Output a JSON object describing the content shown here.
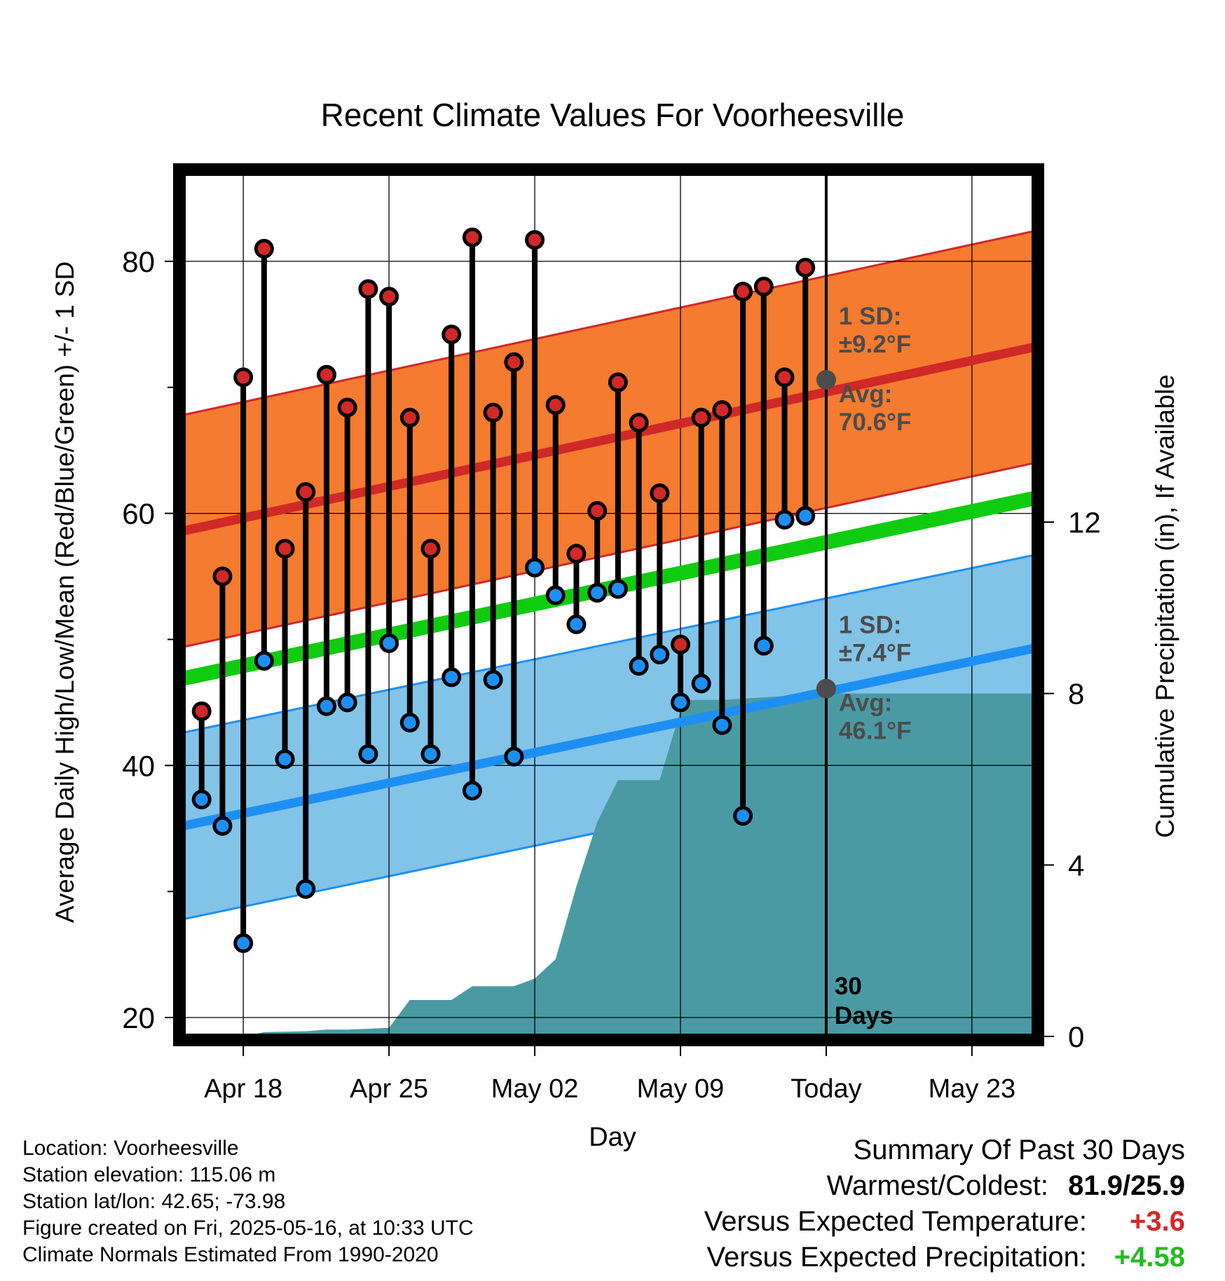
{
  "chart_data": {
    "type": "line",
    "title": "Recent Climate Values For Voorheesville",
    "xlabel": "Day",
    "ylabel": "Average Daily High/Low/Mean (Red/Blue/Green) +/- 1 SD",
    "y2label": "Cumulative Precipitation (in), If Available",
    "xlim": [
      -0.9,
      40
    ],
    "ylim": [
      18.5,
      87
    ],
    "y2lim": [
      0,
      20.14
    ],
    "x_tick_positions": [
      2,
      9,
      16,
      23,
      30,
      37
    ],
    "x_tick_labels": [
      "Apr 18",
      "Apr 25",
      "May 02",
      "May 09",
      "Today",
      "May 23"
    ],
    "y_ticks": [
      20,
      40,
      60,
      80
    ],
    "y_minor_ticks": [
      30,
      50,
      70
    ],
    "y2_ticks": [
      0,
      4,
      8,
      12
    ],
    "grid": true,
    "today_x": 30,
    "today_label": "30\nDays",
    "daily": {
      "x": [
        0,
        1,
        2,
        3,
        4,
        5,
        6,
        7,
        8,
        9,
        10,
        11,
        12,
        13,
        14,
        15,
        16,
        17,
        18,
        19,
        20,
        21,
        22,
        23,
        24,
        25,
        26,
        27,
        28,
        29
      ],
      "high": [
        44.3,
        55.0,
        70.8,
        81.0,
        57.2,
        61.7,
        71.0,
        68.4,
        77.8,
        77.2,
        67.6,
        57.2,
        74.2,
        81.9,
        68.0,
        72.0,
        81.7,
        68.6,
        56.8,
        60.2,
        70.4,
        67.2,
        61.6,
        49.6,
        67.6,
        68.2,
        77.6,
        78.0,
        70.8,
        79.5
      ],
      "low": [
        37.3,
        35.2,
        25.9,
        48.3,
        40.5,
        30.2,
        44.7,
        45.0,
        40.9,
        49.7,
        43.4,
        40.9,
        47.0,
        38.0,
        46.8,
        40.7,
        55.7,
        53.5,
        51.2,
        53.7,
        54.0,
        47.9,
        48.8,
        45.0,
        46.5,
        43.2,
        36.0,
        49.5,
        59.5,
        59.8
      ]
    },
    "normals": {
      "x": [
        -0.9,
        40
      ],
      "high_avg": [
        58.6,
        73.2
      ],
      "high_sd": 9.2,
      "low_avg": [
        35.2,
        49.3
      ],
      "low_sd": 7.4,
      "mean_avg": [
        46.9,
        61.2
      ]
    },
    "precip": {
      "x": [
        -0.9,
        1,
        2,
        3,
        5,
        6,
        7,
        8,
        9,
        10,
        11,
        12,
        13,
        14,
        15,
        16,
        17,
        18,
        19,
        20,
        21,
        22,
        23,
        23.5,
        25,
        30,
        40
      ],
      "y": [
        0,
        0,
        0,
        0.1,
        0.12,
        0.16,
        0.16,
        0.18,
        0.2,
        0.85,
        0.85,
        0.85,
        1.17,
        1.17,
        1.17,
        1.35,
        1.8,
        3.5,
        5.0,
        5.98,
        5.98,
        5.98,
        7.6,
        7.85,
        7.85,
        8.0,
        8.0
      ]
    },
    "annotations": {
      "high_sd_label": "1 SD:",
      "high_sd_value": "±9.2°F",
      "high_avg_label": "Avg:",
      "high_avg_value": "70.6°F",
      "high_avg_point": 70.6,
      "low_sd_label": "1 SD:",
      "low_sd_value": "±7.4°F",
      "low_avg_label": "Avg:",
      "low_avg_value": "46.1°F",
      "low_avg_point": 46.1
    },
    "colors": {
      "high": "#d12828",
      "high_band": "#f47b2f",
      "low": "#1e8ff2",
      "low_band": "#82c3e8",
      "mean": "#10cc10",
      "precip": "#4a9aa4",
      "annotation": "#4c4c4c"
    }
  },
  "info": {
    "location": "Location: Voorheesville",
    "elevation": "Station elevation: 115.06 m",
    "latlon": "Station lat/lon: 42.65; -73.98",
    "created": "Figure created on Fri, 2025-05-16, at 10:33 UTC",
    "normals": "Climate Normals Estimated From 1990-2020"
  },
  "summary": {
    "title": "Summary Of Past 30 Days",
    "warm_cold_label": "Warmest/Coldest:",
    "warm_cold_value": "81.9/25.9",
    "temp_label": "Versus Expected Temperature:",
    "temp_value": "+3.6",
    "precip_label": "Versus Expected Precipitation:",
    "precip_value": "+4.58",
    "temp_color": "#d62728",
    "precip_color": "#22bb22"
  }
}
